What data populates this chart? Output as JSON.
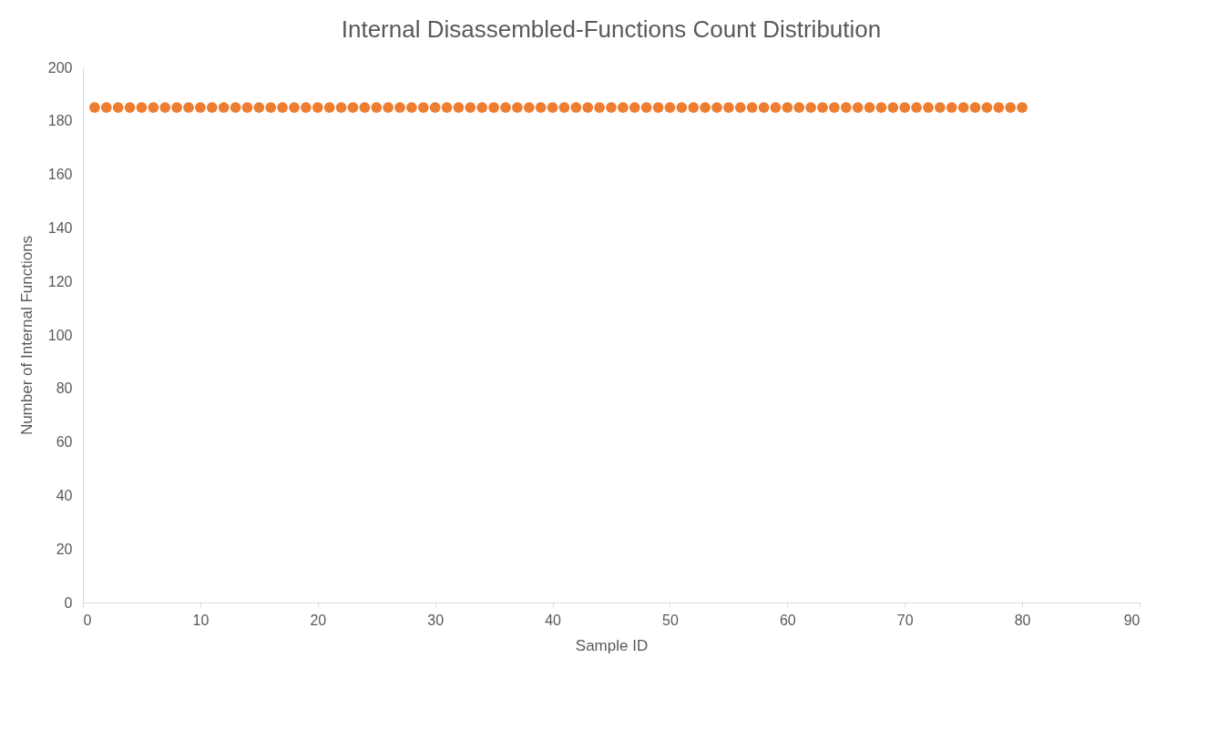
{
  "chart_data": {
    "type": "scatter",
    "title": "Internal Disassembled-Functions Count Distribution",
    "xlabel": "Sample ID",
    "ylabel": "Number of Internal Functions",
    "x": [
      1,
      2,
      3,
      4,
      5,
      6,
      7,
      8,
      9,
      10,
      11,
      12,
      13,
      14,
      15,
      16,
      17,
      18,
      19,
      20,
      21,
      22,
      23,
      24,
      25,
      26,
      27,
      28,
      29,
      30,
      31,
      32,
      33,
      34,
      35,
      36,
      37,
      38,
      39,
      40,
      41,
      42,
      43,
      44,
      45,
      46,
      47,
      48,
      49,
      50,
      51,
      52,
      53,
      54,
      55,
      56,
      57,
      58,
      59,
      60,
      61,
      62,
      63,
      64,
      65,
      66,
      67,
      68,
      69,
      70,
      71,
      72,
      73,
      74,
      75,
      76,
      77,
      78,
      79,
      80
    ],
    "series": [
      {
        "color": "#ed7d31",
        "values": [
          185,
          185,
          185,
          185,
          185,
          185,
          185,
          185,
          185,
          185,
          185,
          185,
          185,
          185,
          185,
          185,
          185,
          185,
          185,
          185,
          185,
          185,
          185,
          185,
          185,
          185,
          185,
          185,
          185,
          185,
          185,
          185,
          185,
          185,
          185,
          185,
          185,
          185,
          185,
          185,
          185,
          185,
          185,
          185,
          185,
          185,
          185,
          185,
          185,
          185,
          185,
          185,
          185,
          185,
          185,
          185,
          185,
          185,
          185,
          185,
          185,
          185,
          185,
          185,
          185,
          185,
          185,
          185,
          185,
          185,
          185,
          185,
          185,
          185,
          185,
          185,
          185,
          185,
          185,
          185
        ]
      }
    ],
    "xlim": [
      0,
      90
    ],
    "xticks": [
      0,
      10,
      20,
      30,
      40,
      50,
      60,
      70,
      80,
      90
    ],
    "ylim": [
      0,
      200
    ],
    "yticks": [
      0,
      20,
      40,
      60,
      80,
      100,
      120,
      140,
      160,
      180,
      200
    ],
    "grid": false,
    "marker": "circle"
  }
}
